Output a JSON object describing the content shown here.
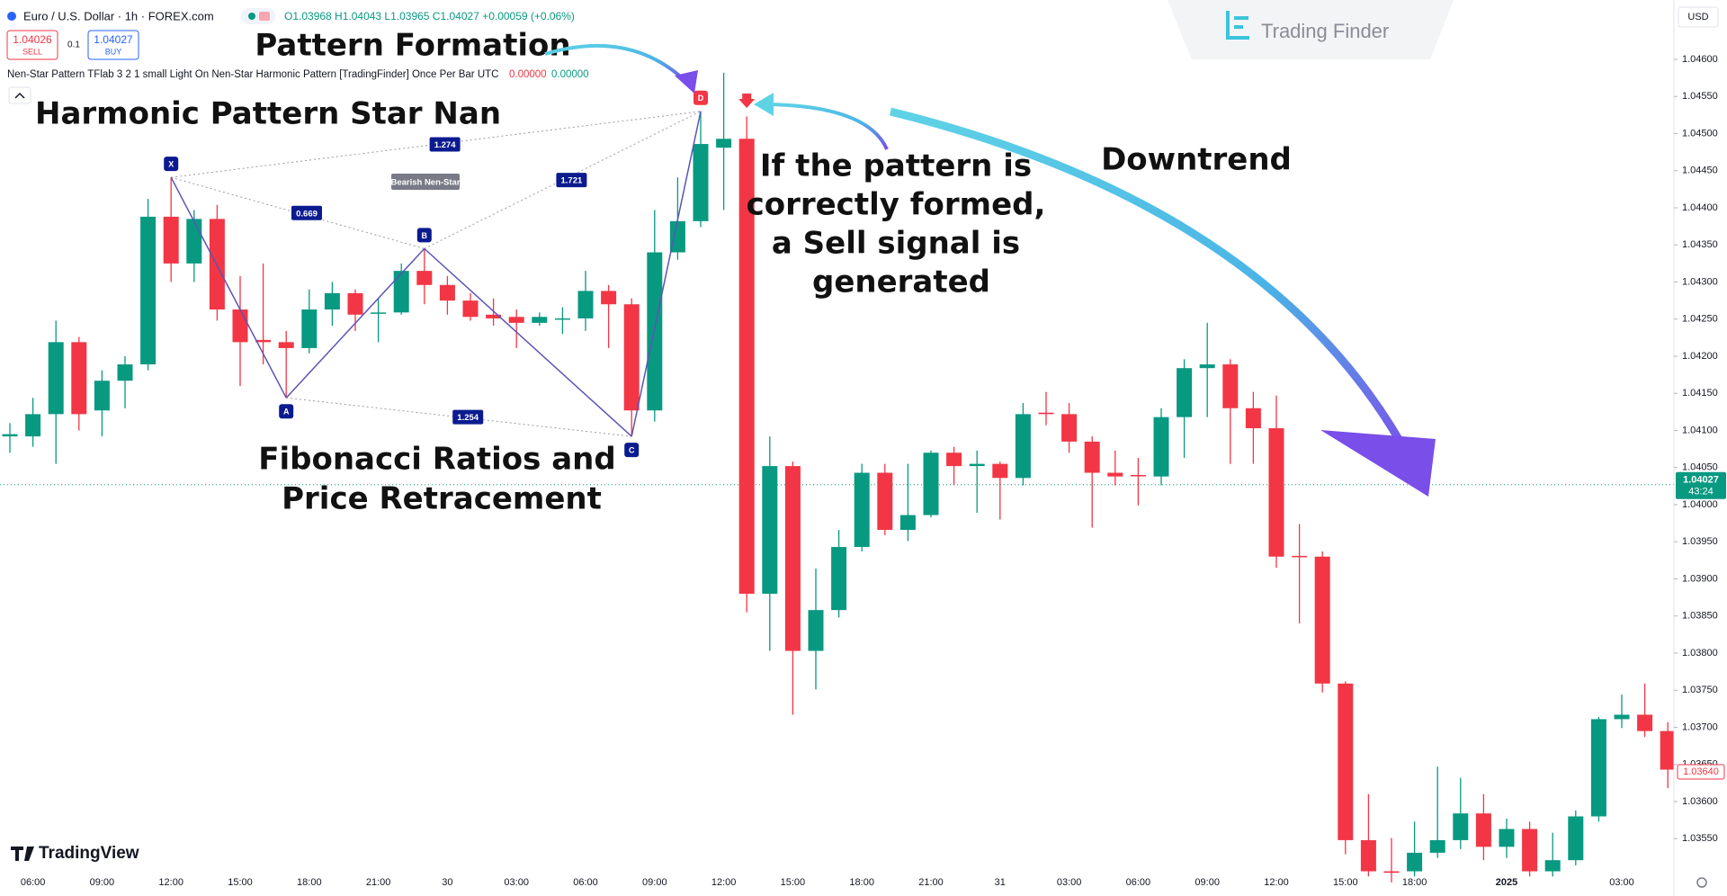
{
  "header": {
    "symbol": "Euro / U.S. Dollar · 1h · FOREX.com",
    "ohlc": "O1.03968 H1.04043 L1.03965 C1.04027 +0.00059 (+0.06%)",
    "sell_price": "1.04026",
    "sell_label": "SELL",
    "lot": "0.1",
    "buy_price": "1.04027",
    "buy_label": "BUY",
    "indicator": "Nen-Star Pattern TFlab 3 2 1 small Light On Nen-Star Harmonic Pattern [TradingFinder] Once Per Bar UTC",
    "indicator_values": [
      "0.00000",
      "0.00000"
    ],
    "brand": "Trading Finder",
    "currency": "USD",
    "platform": "TradingView"
  },
  "chart_data": {
    "type": "candlestick",
    "x": [
      null,
      "06:00",
      null,
      null,
      "09:00",
      null,
      null,
      "12:00",
      null,
      null,
      "15:00",
      null,
      null,
      "18:00",
      null,
      null,
      "21:00",
      null,
      null,
      "30",
      null,
      null,
      "03:00",
      null,
      null,
      "06:00",
      null,
      null,
      "09:00",
      null,
      null,
      "12:00",
      null,
      null,
      "15:00",
      null,
      null,
      "18:00",
      null,
      null,
      "21:00",
      null,
      null,
      "31",
      null,
      null,
      "03:00",
      null,
      null,
      "06:00",
      null,
      null,
      "09:00",
      null,
      null,
      "12:00",
      null,
      null,
      "15:00",
      null,
      null,
      "18:00",
      null,
      null,
      null,
      "2025",
      null,
      null,
      null,
      null,
      "03:00",
      null,
      null
    ],
    "open": [
      1.04092,
      1.04092,
      1.04122,
      1.04219,
      1.04127,
      1.04167,
      1.04189,
      1.04388,
      1.04325,
      1.04385,
      1.04263,
      1.04222,
      1.04219,
      1.04211,
      1.04263,
      1.04285,
      1.04258,
      1.04259,
      1.04315,
      1.04296,
      1.04275,
      1.04256,
      1.04253,
      1.04245,
      1.04251,
      1.04251,
      1.04288,
      1.0427,
      1.04127,
      1.0434,
      1.04382,
      1.04481,
      1.04493,
      1.0388,
      1.04052,
      1.03803,
      1.03858,
      1.03943,
      1.04043,
      1.03966,
      1.03986,
      1.0407,
      1.04052,
      1.04055,
      1.04036,
      1.04124,
      1.04122,
      1.04085,
      1.04043,
      1.0404,
      1.04038,
      1.04118,
      1.04184,
      1.04189,
      1.0413,
      1.04103,
      1.03931,
      1.0393,
      1.03759,
      1.03548,
      1.03506,
      1.03506,
      1.03531,
      1.03548,
      1.03584,
      1.03539,
      1.03563,
      1.03506,
      1.03521,
      1.0358,
      1.03711,
      1.03717,
      1.03695
    ],
    "high": [
      1.0411,
      1.04144,
      1.04248,
      1.04226,
      1.04181,
      1.042,
      1.04412,
      1.04441,
      1.04397,
      1.04404,
      1.04308,
      1.04325,
      1.04234,
      1.0429,
      1.043,
      1.0429,
      1.04278,
      1.04325,
      1.04345,
      1.04308,
      1.04285,
      1.04278,
      1.04263,
      1.04259,
      1.04266,
      1.04315,
      1.04296,
      1.04278,
      1.04397,
      1.04441,
      1.0453,
      1.04582,
      1.04523,
      1.04092,
      1.04058,
      1.03914,
      1.03966,
      1.04055,
      1.04055,
      1.04055,
      1.04073,
      1.04078,
      1.04073,
      1.04058,
      1.04137,
      1.04152,
      1.04137,
      1.04092,
      1.04073,
      1.04063,
      1.0413,
      1.04196,
      1.04245,
      1.04196,
      1.04152,
      1.04147,
      1.03974,
      1.03937,
      1.03762,
      1.0361,
      1.03551,
      1.03573,
      1.03647,
      1.03632,
      1.0361,
      1.03577,
      1.03573,
      1.03558,
      1.03588,
      1.03714,
      1.03744,
      1.03759,
      1.03707
    ],
    "low": [
      1.0407,
      1.04078,
      1.04055,
      1.041,
      1.04092,
      1.0413,
      1.04181,
      1.043,
      1.043,
      1.04248,
      1.0416,
      1.04189,
      1.04144,
      1.04204,
      1.04241,
      1.04234,
      1.04219,
      1.04256,
      1.0427,
      1.04256,
      1.04248,
      1.04241,
      1.04211,
      1.04241,
      1.0423,
      1.04234,
      1.04211,
      1.04092,
      1.04112,
      1.0433,
      1.04374,
      1.04397,
      1.03855,
      1.03803,
      1.03717,
      1.03751,
      1.03848,
      1.03937,
      1.03959,
      1.03951,
      1.03983,
      1.04026,
      1.03989,
      1.0398,
      1.04026,
      1.04107,
      1.0407,
      1.03969,
      1.04026,
      1.03999,
      1.04026,
      1.04063,
      1.04118,
      1.04055,
      1.04055,
      1.03915,
      1.0384,
      1.03747,
      1.03529,
      1.03499,
      1.03491,
      1.03499,
      1.03524,
      1.03536,
      1.03521,
      1.03524,
      1.03499,
      1.03499,
      1.03514,
      1.03573,
      1.03699,
      1.03687,
      1.03618
    ],
    "close": [
      1.04095,
      1.04122,
      1.04219,
      1.04122,
      1.04167,
      1.04189,
      1.04388,
      1.04325,
      1.04385,
      1.04263,
      1.04219,
      1.04219,
      1.04211,
      1.04263,
      1.04285,
      1.04256,
      1.04259,
      1.04315,
      1.04296,
      1.04275,
      1.04253,
      1.04251,
      1.04245,
      1.04253,
      1.04251,
      1.04288,
      1.0427,
      1.04127,
      1.0434,
      1.04382,
      1.04486,
      1.04493,
      1.0388,
      1.04052,
      1.03803,
      1.03858,
      1.03943,
      1.04043,
      1.03966,
      1.03986,
      1.0407,
      1.04052,
      1.04055,
      1.04036,
      1.04122,
      1.04122,
      1.04085,
      1.04043,
      1.04038,
      1.04039,
      1.04118,
      1.04184,
      1.04189,
      1.0413,
      1.04103,
      1.0393,
      1.0393,
      1.03759,
      1.03548,
      1.03506,
      1.03504,
      1.03531,
      1.03548,
      1.03584,
      1.03539,
      1.03563,
      1.03506,
      1.03521,
      1.0358,
      1.03711,
      1.03717,
      1.03695,
      1.03643
    ],
    "up_color": "#089981",
    "down_color": "#f23645",
    "ylim": [
      1.0348,
      1.0468
    ],
    "yticks": [
      {
        "value": 1.046,
        "label": "1.04600"
      },
      {
        "value": 1.0455,
        "label": "1.04550"
      },
      {
        "value": 1.045,
        "label": "1.04500"
      },
      {
        "value": 1.0445,
        "label": "1.04450"
      },
      {
        "value": 1.044,
        "label": "1.04400"
      },
      {
        "value": 1.0435,
        "label": "1.04350"
      },
      {
        "value": 1.043,
        "label": "1.04300"
      },
      {
        "value": 1.0425,
        "label": "1.04250"
      },
      {
        "value": 1.042,
        "label": "1.04200"
      },
      {
        "value": 1.0415,
        "label": "1.04150"
      },
      {
        "value": 1.041,
        "label": "1.04100"
      },
      {
        "value": 1.0405,
        "label": "1.04050"
      },
      {
        "value": 1.04,
        "label": "1.04000"
      },
      {
        "value": 1.0395,
        "label": "1.03950"
      },
      {
        "value": 1.039,
        "label": "1.03900"
      },
      {
        "value": 1.0385,
        "label": "1.03850"
      },
      {
        "value": 1.038,
        "label": "1.03800"
      },
      {
        "value": 1.0375,
        "label": "1.03750"
      },
      {
        "value": 1.037,
        "label": "1.03700"
      },
      {
        "value": 1.0365,
        "label": "1.03650"
      },
      {
        "value": 1.036,
        "label": "1.03600"
      },
      {
        "value": 1.0355,
        "label": "1.03550"
      }
    ],
    "grid": false,
    "current_price": 1.04027,
    "countdown": "43:24",
    "price_badge": {
      "value": 1.0364,
      "label": "1.03640"
    },
    "pattern": {
      "name": "Bearish Nen-Star",
      "points": [
        {
          "label": "X",
          "price": 1.04441
        },
        {
          "label": "A",
          "price": 1.04144
        },
        {
          "label": "B",
          "price": 1.04345
        },
        {
          "label": "C",
          "price": 1.04092
        },
        {
          "label": "D",
          "price": 1.0453
        }
      ],
      "ratios": [
        "1.274",
        "0.669",
        "1.721",
        "1.254"
      ]
    },
    "annotations": [
      "Pattern Formation",
      "Harmonic Pattern Star Nan",
      "Fibonacci Ratios and",
      "Price Retracement",
      "If the pattern is",
      "correctly formed,",
      "a Sell signal is",
      "generated",
      "Downtrend"
    ]
  }
}
